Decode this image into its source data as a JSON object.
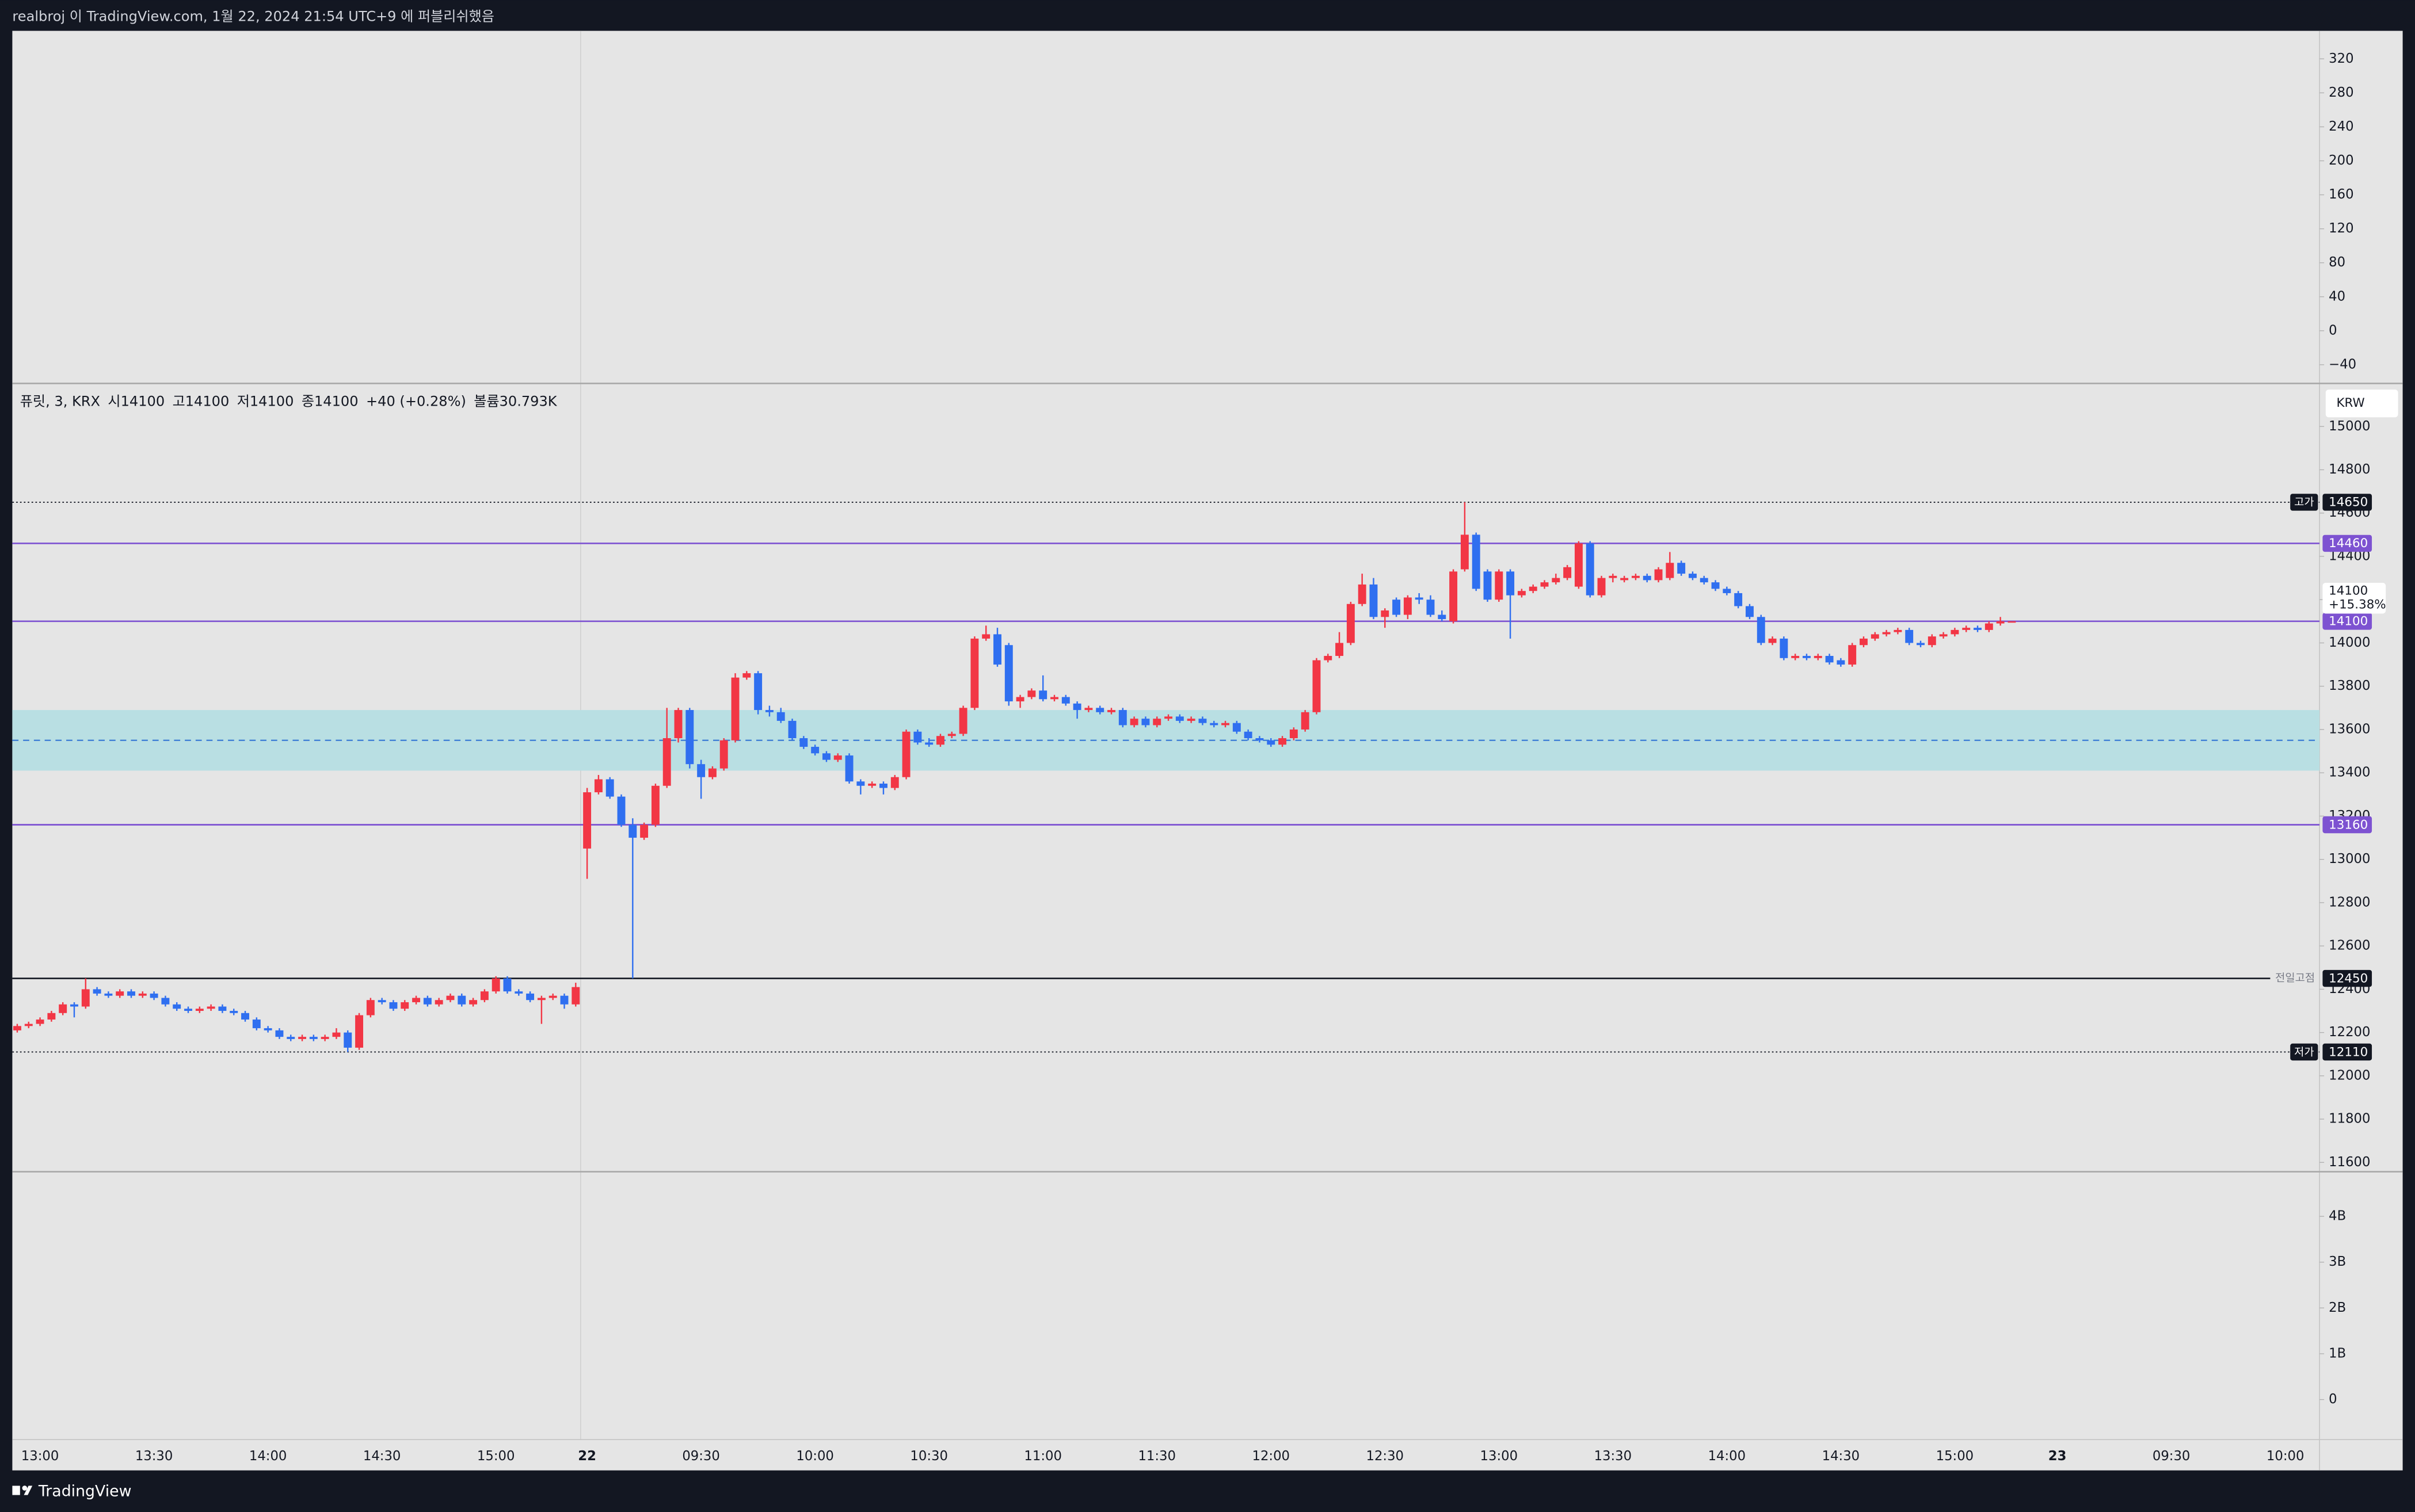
{
  "header": {
    "publisher": "realbroj 이 TradingView.com, 1월 22, 2024 21:54 UTC+9 에 퍼블리쉬했음"
  },
  "footer": {
    "brand": "TradingView"
  },
  "chart_data": {
    "type": "candlestick",
    "legend": [
      "퓨릿, 3, KRX",
      "시14100",
      "고14100",
      "저14100",
      "종14100",
      "+40 (+0.28%)",
      "볼륨30.793K"
    ],
    "currency": "KRW",
    "up_color": "#f23645",
    "down_color": "#2f6ff0",
    "grid": false,
    "categories": [
      null,
      null,
      "13:00",
      null,
      null,
      null,
      null,
      null,
      null,
      null,
      null,
      null,
      "13:30",
      null,
      null,
      null,
      null,
      null,
      null,
      null,
      null,
      null,
      "14:00",
      null,
      null,
      null,
      null,
      null,
      null,
      null,
      null,
      null,
      "14:30",
      null,
      null,
      null,
      null,
      null,
      null,
      null,
      null,
      null,
      "15:00",
      null,
      null,
      null,
      null,
      null,
      null,
      null,
      "22",
      null,
      null,
      null,
      null,
      null,
      null,
      null,
      null,
      null,
      "09:30",
      null,
      null,
      null,
      null,
      null,
      null,
      null,
      null,
      null,
      "10:00",
      null,
      null,
      null,
      null,
      null,
      null,
      null,
      null,
      null,
      "10:30",
      null,
      null,
      null,
      null,
      null,
      null,
      null,
      null,
      null,
      "11:00",
      null,
      null,
      null,
      null,
      null,
      null,
      null,
      null,
      null,
      "11:30",
      null,
      null,
      null,
      null,
      null,
      null,
      null,
      null,
      null,
      "12:00",
      null,
      null,
      null,
      null,
      null,
      null,
      null,
      null,
      null,
      "12:30",
      null,
      null,
      null,
      null,
      null,
      null,
      null,
      null,
      null,
      "13:00",
      null,
      null,
      null,
      null,
      null,
      null,
      null,
      null,
      null,
      "13:30",
      null,
      null,
      null,
      null,
      null,
      null,
      null,
      null,
      null,
      "14:00",
      null,
      null,
      null,
      null,
      null,
      null,
      null,
      null,
      null,
      "14:30",
      null,
      null,
      null,
      null,
      null,
      null,
      null,
      null,
      null,
      "15:00",
      null,
      null,
      null,
      null,
      null,
      null,
      null,
      null,
      "23",
      null,
      null,
      null,
      null,
      null,
      null,
      null,
      null,
      null,
      "09:30",
      null,
      null,
      null,
      null,
      null,
      null,
      null,
      null,
      null,
      "10:00",
      null,
      null
    ],
    "open": [
      12210,
      12230,
      12240,
      12260,
      12290,
      12330,
      12320,
      12400,
      12380,
      12370,
      12390,
      12370,
      12380,
      12360,
      12330,
      12310,
      12300,
      12310,
      12320,
      12300,
      12290,
      12260,
      12220,
      12210,
      12180,
      12170,
      12180,
      12170,
      12180,
      12200,
      12130,
      12280,
      12350,
      12340,
      12310,
      12340,
      12360,
      12330,
      12350,
      12370,
      12330,
      12350,
      12390,
      12450,
      12390,
      12380,
      12350,
      12360,
      12370,
      12330,
      13050,
      13310,
      13370,
      13290,
      13160,
      13100,
      13160,
      13340,
      13560,
      13690,
      13440,
      13380,
      13420,
      13550,
      13840,
      13860,
      13690,
      13680,
      13640,
      13560,
      13520,
      13490,
      13460,
      13480,
      13360,
      13340,
      13350,
      13330,
      13380,
      13590,
      13540,
      13530,
      13570,
      13580,
      13700,
      14020,
      14040,
      13990,
      13730,
      13750,
      13780,
      13740,
      13750,
      13720,
      13690,
      13700,
      13680,
      13690,
      13620,
      13650,
      13620,
      13650,
      13660,
      13640,
      13650,
      13630,
      13620,
      13630,
      13590,
      13560,
      13550,
      13530,
      13560,
      13600,
      13680,
      13920,
      13940,
      14000,
      14180,
      14270,
      14120,
      14200,
      14130,
      14210,
      14200,
      14130,
      14100,
      14340,
      14500,
      14330,
      14200,
      14330,
      14220,
      14240,
      14260,
      14280,
      14300,
      14260,
      14460,
      14220,
      14300,
      14290,
      14300,
      14310,
      14290,
      14300,
      14370,
      14320,
      14300,
      14280,
      14250,
      14230,
      14170,
      14120,
      14000,
      14020,
      13930,
      13940,
      13930,
      13940,
      13920,
      13900,
      13990,
      14020,
      14040,
      14050,
      14060,
      14000,
      13990,
      14030,
      14040,
      14060,
      14070,
      14060,
      14090,
      14100,
      null,
      null,
      null,
      null,
      null,
      null,
      null,
      null,
      null,
      null,
      null,
      null,
      null,
      null,
      null,
      null,
      null,
      null,
      null,
      null,
      null,
      null,
      null,
      null,
      null,
      null
    ],
    "high": [
      12240,
      12250,
      12270,
      12300,
      12340,
      12340,
      12450,
      12410,
      12390,
      12400,
      12400,
      12390,
      12390,
      12370,
      12340,
      12320,
      12320,
      12330,
      12330,
      12310,
      12300,
      12270,
      12230,
      12220,
      12190,
      12190,
      12190,
      12190,
      12220,
      12210,
      12290,
      12360,
      12360,
      12350,
      12350,
      12370,
      12370,
      12360,
      12380,
      12380,
      12360,
      12400,
      12460,
      12460,
      12400,
      12390,
      12370,
      12380,
      12380,
      12430,
      13330,
      13390,
      13380,
      13300,
      13190,
      13170,
      13350,
      13700,
      13700,
      13700,
      13460,
      13430,
      13560,
      13860,
      13870,
      13870,
      13710,
      13700,
      13650,
      13570,
      13530,
      13500,
      13490,
      13490,
      13370,
      13360,
      13360,
      13390,
      13600,
      13600,
      13560,
      13580,
      13590,
      13710,
      14030,
      14080,
      14070,
      14000,
      13760,
      13790,
      13850,
      13760,
      13760,
      13730,
      13710,
      13710,
      13700,
      13700,
      13660,
      13660,
      13660,
      13670,
      13670,
      13660,
      13660,
      13640,
      13640,
      13640,
      13600,
      13570,
      13560,
      13570,
      13610,
      13690,
      13930,
      13950,
      14050,
      14190,
      14320,
      14300,
      14160,
      14210,
      14220,
      14230,
      14220,
      14150,
      14340,
      14650,
      14510,
      14340,
      14340,
      14340,
      14250,
      14270,
      14290,
      14320,
      14360,
      14470,
      14470,
      14310,
      14320,
      14310,
      14320,
      14320,
      14350,
      14420,
      14380,
      14330,
      14310,
      14290,
      14260,
      14240,
      14180,
      14130,
      14030,
      14030,
      13950,
      13950,
      13950,
      13950,
      13930,
      14000,
      14030,
      14050,
      14060,
      14070,
      14070,
      14010,
      14040,
      14050,
      14070,
      14080,
      14080,
      14100,
      14120,
      14100,
      null,
      null,
      null,
      null,
      null,
      null,
      null,
      null,
      null,
      null,
      null,
      null,
      null,
      null,
      null,
      null,
      null,
      null,
      null,
      null,
      null,
      null,
      null,
      null,
      null,
      null
    ],
    "low": [
      12200,
      12220,
      12230,
      12250,
      12280,
      12270,
      12310,
      12370,
      12360,
      12360,
      12360,
      12360,
      12350,
      12320,
      12300,
      12290,
      12290,
      12300,
      12290,
      12280,
      12250,
      12210,
      12200,
      12170,
      12160,
      12160,
      12160,
      12160,
      12170,
      12110,
      12120,
      12270,
      12330,
      12300,
      12300,
      12330,
      12320,
      12320,
      12340,
      12320,
      12320,
      12340,
      12380,
      12380,
      12370,
      12340,
      12240,
      12350,
      12310,
      12320,
      12910,
      13300,
      13280,
      13150,
      12450,
      13090,
      13150,
      13330,
      13540,
      13420,
      13280,
      13370,
      13410,
      13540,
      13830,
      13670,
      13660,
      13630,
      13550,
      13510,
      13480,
      13450,
      13450,
      13350,
      13300,
      13330,
      13300,
      13320,
      13370,
      13530,
      13520,
      13520,
      13560,
      13570,
      13690,
      14010,
      13890,
      13710,
      13700,
      13740,
      13730,
      13730,
      13710,
      13650,
      13680,
      13670,
      13670,
      13610,
      13610,
      13610,
      13610,
      13640,
      13630,
      13630,
      13620,
      13610,
      13610,
      13580,
      13550,
      13540,
      13520,
      13520,
      13550,
      13590,
      13670,
      13910,
      13930,
      13990,
      14170,
      14110,
      14070,
      14120,
      14110,
      14180,
      14120,
      14100,
      14090,
      14330,
      14240,
      14190,
      14190,
      14020,
      14210,
      14230,
      14250,
      14270,
      14290,
      14250,
      14210,
      14210,
      14280,
      14280,
      14290,
      14280,
      14280,
      14290,
      14310,
      14290,
      14270,
      14240,
      14220,
      14160,
      14110,
      13990,
      13990,
      13920,
      13920,
      13920,
      13920,
      13900,
      13890,
      13890,
      13980,
      14010,
      14030,
      14040,
      13990,
      13980,
      13980,
      14020,
      14030,
      14050,
      14050,
      14050,
      14080,
      14100,
      null,
      null,
      null,
      null,
      null,
      null,
      null,
      null,
      null,
      null,
      null,
      null,
      null,
      null,
      null,
      null,
      null,
      null,
      null,
      null,
      null,
      null,
      null,
      null,
      null,
      null
    ],
    "close": [
      12230,
      12240,
      12260,
      12290,
      12330,
      12320,
      12400,
      12380,
      12370,
      12390,
      12370,
      12380,
      12360,
      12330,
      12310,
      12300,
      12310,
      12320,
      12300,
      12290,
      12260,
      12220,
      12210,
      12180,
      12170,
      12180,
      12170,
      12180,
      12200,
      12130,
      12280,
      12350,
      12340,
      12310,
      12340,
      12360,
      12330,
      12350,
      12370,
      12330,
      12350,
      12390,
      12450,
      12390,
      12380,
      12350,
      12360,
      12370,
      12330,
      12410,
      13310,
      13370,
      13290,
      13160,
      13100,
      13160,
      13340,
      13560,
      13690,
      13440,
      13380,
      13420,
      13550,
      13840,
      13860,
      13690,
      13680,
      13640,
      13560,
      13520,
      13490,
      13460,
      13480,
      13360,
      13340,
      13350,
      13330,
      13380,
      13590,
      13540,
      13530,
      13570,
      13580,
      13700,
      14020,
      14040,
      13900,
      13730,
      13750,
      13780,
      13740,
      13750,
      13720,
      13690,
      13700,
      13680,
      13690,
      13620,
      13650,
      13620,
      13650,
      13660,
      13640,
      13650,
      13630,
      13620,
      13630,
      13590,
      13560,
      13550,
      13530,
      13560,
      13600,
      13680,
      13920,
      13940,
      14000,
      14180,
      14270,
      14120,
      14150,
      14130,
      14210,
      14200,
      14130,
      14110,
      14330,
      14500,
      14250,
      14200,
      14330,
      14220,
      14240,
      14260,
      14280,
      14300,
      14350,
      14460,
      14220,
      14300,
      14310,
      14300,
      14310,
      14290,
      14340,
      14370,
      14320,
      14300,
      14280,
      14250,
      14230,
      14170,
      14120,
      14000,
      14020,
      13930,
      13940,
      13930,
      13940,
      13910,
      13900,
      13990,
      14020,
      14040,
      14050,
      14060,
      14000,
      13990,
      14030,
      14040,
      14060,
      14070,
      14060,
      14090,
      14100,
      14100,
      null,
      null,
      null,
      null,
      null,
      null,
      null,
      null,
      null,
      null,
      null,
      null,
      null,
      null,
      null,
      null,
      null,
      null,
      null,
      null,
      null,
      null,
      null,
      null,
      null,
      null
    ],
    "ylim": [
      11557,
      15199
    ],
    "yticks": [
      15000,
      14800,
      14600,
      14400,
      14200,
      14000,
      13800,
      13600,
      13400,
      13200,
      13000,
      12800,
      12600,
      12400,
      12200,
      12000,
      11800,
      11600
    ],
    "levels": [
      {
        "price": 14650,
        "tag": "고가",
        "tag_style": "box",
        "style": "dotted",
        "color": "#131722"
      },
      {
        "price": 14460,
        "style": "solid",
        "color": "#7d52d1"
      },
      {
        "price": 14100,
        "style": "solid",
        "color": "#7d52d1"
      },
      {
        "price": 13160,
        "style": "solid",
        "color": "#7d52d1"
      },
      {
        "price": 12450,
        "tag": "전일고점",
        "tag_style": "text",
        "style": "solid",
        "color": "#131722"
      },
      {
        "price": 12110,
        "tag": "저가",
        "tag_style": "box",
        "style": "dotted",
        "color": "#131722"
      }
    ],
    "zone": {
      "low": 13410,
      "high": 13690,
      "mid": 13550,
      "color": "#b9dfe3",
      "line_color": "#3a7bd5"
    },
    "last": {
      "price": 14100,
      "change": "+15.38%"
    },
    "indicator_pane": {
      "ylim": [
        -62,
        353
      ],
      "yticks": [
        320,
        280,
        240,
        200,
        160,
        120,
        80,
        40,
        0,
        {
          "value": -40,
          "label": "−40"
        }
      ]
    },
    "volume_pane": {
      "ylim": [
        -874000000,
        4975000000
      ],
      "yticks": [
        {
          "value": 4000000000,
          "label": "4B"
        },
        {
          "value": 3000000000,
          "label": "3B"
        },
        {
          "value": 2000000000,
          "label": "2B"
        },
        {
          "value": 1000000000,
          "label": "1B"
        },
        0
      ]
    }
  }
}
